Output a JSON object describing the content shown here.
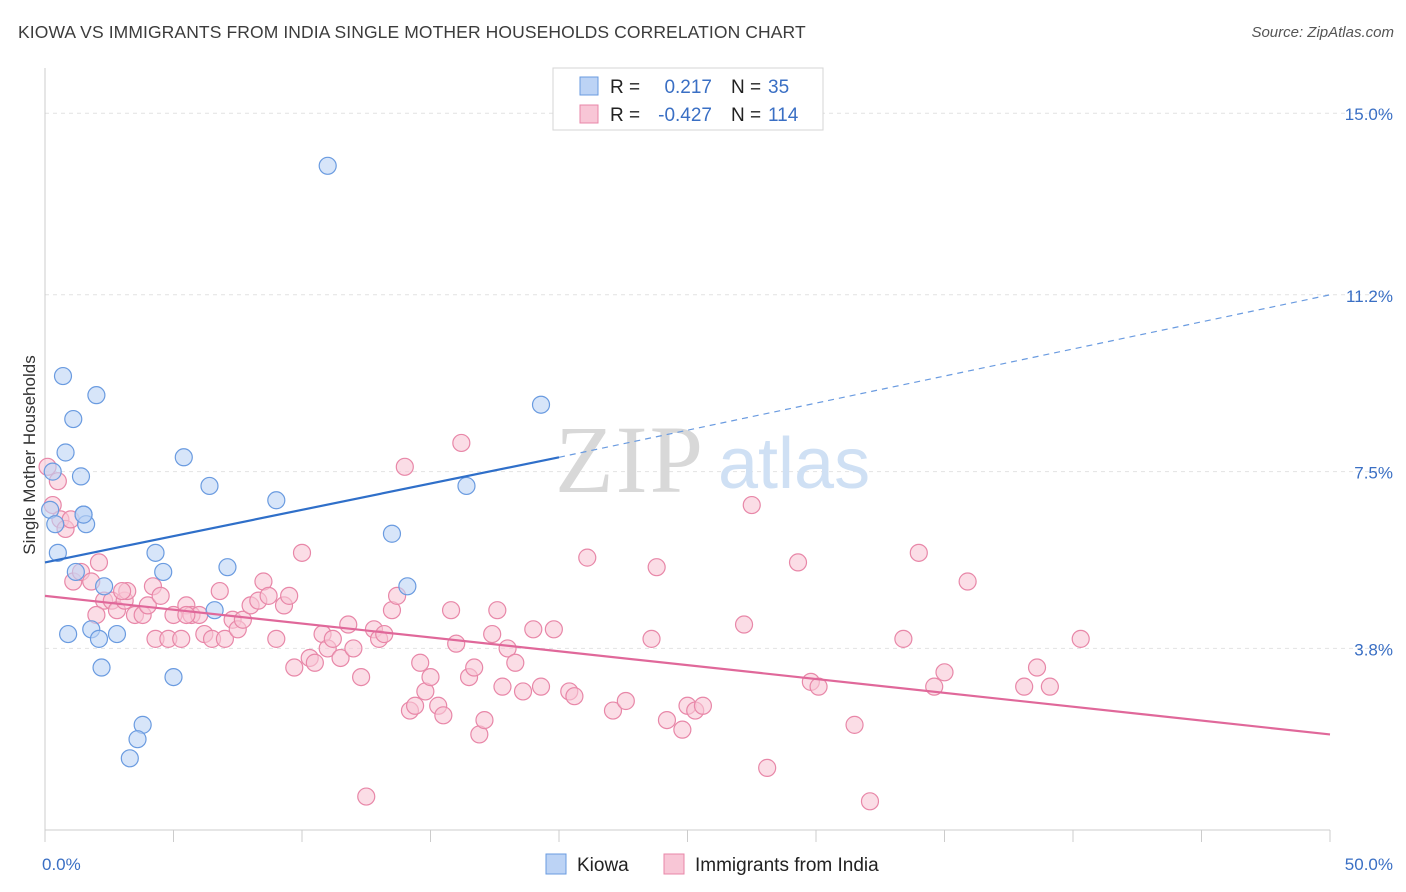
{
  "header": {
    "title": "KIOWA VS IMMIGRANTS FROM INDIA SINGLE MOTHER HOUSEHOLDS CORRELATION CHART",
    "source": "Source: ZipAtlas.com"
  },
  "watermark": {
    "zip": "ZIP",
    "atlas": "atlas"
  },
  "legend": {
    "r_label": "R =",
    "n_label": "N =",
    "rows": [
      {
        "r": "0.217",
        "n": "35",
        "color": "#6a9be0",
        "fill": "#bcd3f5"
      },
      {
        "r": "-0.427",
        "n": "114",
        "color": "#e887a8",
        "fill": "#f8c6d6"
      }
    ]
  },
  "chart_data": {
    "type": "scatter",
    "title": "KIOWA VS IMMIGRANTS FROM INDIA SINGLE MOTHER HOUSEHOLDS CORRELATION CHART",
    "ylabel": "Single Mother Households",
    "xlabel": "",
    "xlim": [
      0,
      50
    ],
    "ylim": [
      0,
      15.8
    ],
    "x_tick_labels": [
      "0.0%",
      "50.0%"
    ],
    "y_ticks": [
      3.8,
      7.5,
      11.2,
      15.0
    ],
    "y_tick_labels": [
      "3.8%",
      "7.5%",
      "11.2%",
      "15.0%"
    ],
    "grid": true,
    "legend_position": "bottom",
    "series": [
      {
        "name": "Kiowa",
        "color": "#6a9be0",
        "fill": "#bcd3f5",
        "trend": {
          "x0": 0,
          "y0": 5.6,
          "x1": 20,
          "y1": 7.8,
          "dash_to_x": 50,
          "dash_to_y": 11.2
        },
        "points": [
          [
            0.2,
            6.7
          ],
          [
            0.3,
            7.5
          ],
          [
            0.4,
            6.4
          ],
          [
            0.5,
            5.8
          ],
          [
            0.7,
            9.5
          ],
          [
            0.8,
            7.9
          ],
          [
            0.9,
            4.1
          ],
          [
            1.1,
            8.6
          ],
          [
            1.2,
            5.4
          ],
          [
            1.4,
            7.4
          ],
          [
            1.5,
            6.6
          ],
          [
            1.6,
            6.4
          ],
          [
            1.8,
            4.2
          ],
          [
            2.0,
            9.1
          ],
          [
            2.1,
            4.0
          ],
          [
            2.2,
            3.4
          ],
          [
            2.3,
            5.1
          ],
          [
            2.8,
            4.1
          ],
          [
            3.8,
            2.2
          ],
          [
            3.6,
            1.9
          ],
          [
            3.3,
            1.5
          ],
          [
            4.3,
            5.8
          ],
          [
            4.6,
            5.4
          ],
          [
            5.0,
            3.2
          ],
          [
            5.4,
            7.8
          ],
          [
            6.4,
            7.2
          ],
          [
            6.6,
            4.6
          ],
          [
            7.1,
            5.5
          ],
          [
            9.0,
            6.9
          ],
          [
            11.0,
            13.9
          ],
          [
            13.5,
            6.2
          ],
          [
            14.1,
            5.1
          ],
          [
            16.4,
            7.2
          ],
          [
            19.3,
            8.9
          ],
          [
            1.5,
            6.6
          ]
        ]
      },
      {
        "name": "Immigrants from India",
        "color": "#e887a8",
        "fill": "#f8c6d6",
        "trend": {
          "x0": 0,
          "y0": 4.9,
          "x1": 50,
          "y1": 2.0
        },
        "points": [
          [
            0.1,
            7.6
          ],
          [
            0.3,
            6.8
          ],
          [
            0.6,
            6.5
          ],
          [
            0.8,
            6.3
          ],
          [
            1.1,
            5.2
          ],
          [
            1.4,
            5.4
          ],
          [
            1.8,
            5.2
          ],
          [
            2.1,
            5.6
          ],
          [
            2.3,
            4.8
          ],
          [
            2.6,
            4.8
          ],
          [
            2.8,
            4.6
          ],
          [
            3.1,
            4.8
          ],
          [
            3.2,
            5.0
          ],
          [
            3.5,
            4.5
          ],
          [
            3.8,
            4.5
          ],
          [
            4.0,
            4.7
          ],
          [
            4.2,
            5.1
          ],
          [
            4.3,
            4.0
          ],
          [
            4.5,
            4.9
          ],
          [
            4.8,
            4.0
          ],
          [
            5.0,
            4.5
          ],
          [
            5.3,
            4.0
          ],
          [
            5.5,
            4.7
          ],
          [
            5.7,
            4.5
          ],
          [
            6.0,
            4.5
          ],
          [
            6.2,
            4.1
          ],
          [
            6.5,
            4.0
          ],
          [
            6.8,
            5.0
          ],
          [
            7.0,
            4.0
          ],
          [
            7.3,
            4.4
          ],
          [
            7.5,
            4.2
          ],
          [
            7.7,
            4.4
          ],
          [
            8.0,
            4.7
          ],
          [
            8.3,
            4.8
          ],
          [
            8.5,
            5.2
          ],
          [
            8.7,
            4.9
          ],
          [
            9.0,
            4.0
          ],
          [
            9.3,
            4.7
          ],
          [
            9.5,
            4.9
          ],
          [
            9.7,
            3.4
          ],
          [
            10.0,
            5.8
          ],
          [
            10.3,
            3.6
          ],
          [
            10.5,
            3.5
          ],
          [
            10.8,
            4.1
          ],
          [
            11.0,
            3.8
          ],
          [
            11.2,
            4.0
          ],
          [
            11.5,
            3.6
          ],
          [
            11.8,
            4.3
          ],
          [
            12.0,
            3.8
          ],
          [
            12.3,
            3.2
          ],
          [
            12.5,
            0.7
          ],
          [
            12.8,
            4.2
          ],
          [
            13.0,
            4.0
          ],
          [
            13.2,
            4.1
          ],
          [
            13.5,
            4.6
          ],
          [
            13.7,
            4.9
          ],
          [
            14.0,
            7.6
          ],
          [
            14.2,
            2.5
          ],
          [
            14.4,
            2.6
          ],
          [
            14.6,
            3.5
          ],
          [
            14.8,
            2.9
          ],
          [
            15.0,
            3.2
          ],
          [
            15.3,
            2.6
          ],
          [
            15.5,
            2.4
          ],
          [
            15.8,
            4.6
          ],
          [
            16.0,
            3.9
          ],
          [
            16.2,
            8.1
          ],
          [
            16.5,
            3.2
          ],
          [
            16.7,
            3.4
          ],
          [
            16.9,
            2.0
          ],
          [
            17.1,
            2.3
          ],
          [
            17.4,
            4.1
          ],
          [
            17.6,
            4.6
          ],
          [
            17.8,
            3.0
          ],
          [
            18.0,
            3.8
          ],
          [
            18.3,
            3.5
          ],
          [
            18.6,
            2.9
          ],
          [
            19.0,
            4.2
          ],
          [
            19.3,
            3.0
          ],
          [
            19.8,
            4.2
          ],
          [
            20.4,
            2.9
          ],
          [
            20.6,
            2.8
          ],
          [
            21.1,
            5.7
          ],
          [
            22.1,
            2.5
          ],
          [
            22.6,
            2.7
          ],
          [
            23.6,
            4.0
          ],
          [
            23.8,
            5.5
          ],
          [
            24.2,
            2.3
          ],
          [
            24.8,
            2.1
          ],
          [
            25.0,
            2.6
          ],
          [
            25.3,
            2.5
          ],
          [
            25.6,
            2.6
          ],
          [
            27.2,
            4.3
          ],
          [
            27.5,
            6.8
          ],
          [
            28.1,
            1.3
          ],
          [
            29.3,
            5.6
          ],
          [
            29.8,
            3.1
          ],
          [
            30.1,
            3.0
          ],
          [
            31.5,
            2.2
          ],
          [
            32.1,
            0.6
          ],
          [
            33.4,
            4.0
          ],
          [
            34.0,
            5.8
          ],
          [
            34.6,
            3.0
          ],
          [
            35.0,
            3.3
          ],
          [
            35.9,
            5.2
          ],
          [
            38.1,
            3.0
          ],
          [
            38.6,
            3.4
          ],
          [
            39.1,
            3.0
          ],
          [
            40.3,
            4.0
          ],
          [
            1.0,
            6.5
          ],
          [
            0.5,
            7.3
          ],
          [
            2.0,
            4.5
          ],
          [
            3.0,
            5.0
          ],
          [
            5.5,
            4.5
          ]
        ]
      }
    ]
  }
}
